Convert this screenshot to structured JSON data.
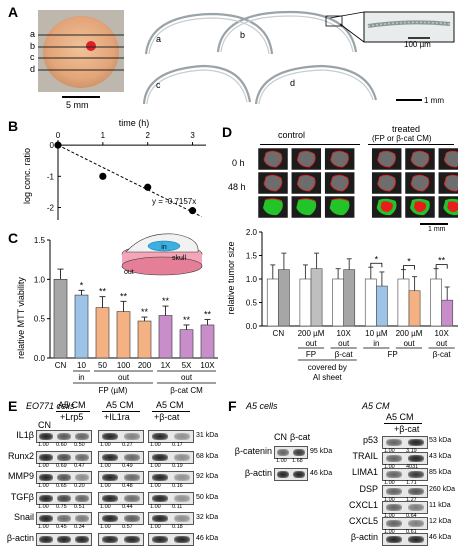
{
  "panels": {
    "A": "A",
    "B": "B",
    "C": "C",
    "D": "D",
    "E": "E",
    "F": "F"
  },
  "panelA": {
    "line_labels": [
      "a",
      "b",
      "c",
      "d"
    ],
    "scale_bar_photo": "5 mm",
    "section_labels": [
      "a",
      "b",
      "c",
      "d"
    ],
    "scale_bar_inset": "100 µm",
    "scale_bar_sections": "1 mm"
  },
  "panelB": {
    "x_axis_title": "time (h)",
    "y_axis_title": "log conc. ratio",
    "equation": "y = -0.7157x"
  },
  "chart_data": [
    {
      "type": "scatter",
      "panel": "B",
      "xlabel": "time (h)",
      "ylabel": "log conc. ratio",
      "x_ticks": [
        "0",
        "1",
        "2",
        "3"
      ],
      "y_ticks": [
        "0",
        "-1",
        "-2"
      ],
      "xlim": [
        0,
        3.3
      ],
      "ylim": [
        -2.4,
        0.1
      ],
      "points": [
        {
          "x": 0,
          "y": 0
        },
        {
          "x": 1,
          "y": -1.0
        },
        {
          "x": 2,
          "y": -1.35
        },
        {
          "x": 3,
          "y": -2.1
        }
      ],
      "fit_slope": -0.7157,
      "annotation": "y = -0.7157x"
    },
    {
      "type": "bar",
      "panel": "C",
      "ylabel": "relative MTT viability",
      "y_ticks": [
        "0.0",
        "0.5",
        "1.0",
        "1.5"
      ],
      "ylim": [
        0,
        1.5
      ],
      "categories": [
        "CN",
        "10",
        "50",
        "100",
        "200",
        "1X",
        "5X",
        "10X"
      ],
      "values": [
        1.0,
        0.8,
        0.64,
        0.59,
        0.47,
        0.54,
        0.36,
        0.42
      ],
      "errors": [
        0.13,
        0.06,
        0.14,
        0.13,
        0.05,
        0.12,
        0.06,
        0.07
      ],
      "significance": [
        "",
        "*",
        "**",
        "**",
        "**",
        "**",
        "**",
        "**"
      ],
      "colors": [
        "#a6a6a6",
        "#9dc3e6",
        "#f4b183",
        "#f4b183",
        "#f4b183",
        "#c88ec9",
        "#c88ec9",
        "#c88ec9"
      ],
      "group_row1": [
        "in",
        "out",
        "out"
      ],
      "group_row2": [
        "FP (µM)",
        "β-cat CM"
      ]
    },
    {
      "type": "bar",
      "panel": "D",
      "ylabel": "relative tumor size",
      "y_ticks": [
        "0.0",
        "0.5",
        "1.0",
        "1.5",
        "2.0"
      ],
      "ylim": [
        0,
        2.0
      ],
      "categories": [
        "CN",
        "200 µM",
        "10X",
        "10 µM",
        "200 µM",
        "10X"
      ],
      "series": [
        {
          "name": "0 h",
          "values": [
            1.0,
            1.0,
            1.0,
            1.0,
            1.0,
            1.0
          ],
          "errors": [
            0.3,
            0.3,
            0.22,
            0.25,
            0.2,
            0.22
          ]
        },
        {
          "name": "48 h",
          "values": [
            1.2,
            1.22,
            1.2,
            0.85,
            0.75,
            0.55
          ],
          "errors": [
            0.35,
            0.33,
            0.23,
            0.3,
            0.3,
            0.28
          ]
        }
      ],
      "colors_0h": "#ffffff",
      "colors_48h": [
        "#a6a6a6",
        "#bfbfbf",
        "#a6a6a6",
        "#9dc3e6",
        "#f4b183",
        "#c88ec9"
      ],
      "significance": [
        "",
        "",
        "",
        "*",
        "*",
        "**"
      ],
      "row_out_in": [
        "out",
        "out",
        "in",
        "out",
        "out"
      ],
      "row_agent": [
        "FP",
        "β-cat",
        "FP",
        "β-cat"
      ],
      "covered_label": "covered by Al sheet"
    }
  ],
  "panelC": {
    "inset_labels": {
      "in": "in",
      "skull": "skull",
      "out": "out"
    }
  },
  "panelD": {
    "control_title": "control",
    "treated_title": "treated",
    "treated_subtitle": "(FP or β-cat CM)",
    "row_labels": [
      "0 h",
      "48 h",
      ""
    ],
    "scale_bar": "1 mm"
  },
  "panelE": {
    "cell_title": "EO771 cells",
    "group_headers": [
      {
        "top": "A5 CM",
        "sub": "+Lrp5"
      },
      {
        "top": "A5 CM",
        "sub": "+IL1ra"
      },
      {
        "top": "A5 CM",
        "sub": "+β-cat"
      }
    ],
    "cn_label": "CN",
    "rows": [
      {
        "name": "IL1β",
        "kda": "31 kDa",
        "q1": [
          "1.00",
          "0.60",
          "0.50"
        ],
        "q2": [
          "1.00",
          "0.27"
        ],
        "q3": [
          "1.00",
          "0.17"
        ]
      },
      {
        "name": "Runx2",
        "kda": "68 kDa",
        "q1": [
          "1.00",
          "0.69",
          "0.47"
        ],
        "q2": [
          "1.00",
          "0.49"
        ],
        "q3": [
          "1.00",
          "0.19"
        ]
      },
      {
        "name": "MMP9",
        "kda": "92 kDa",
        "q1": [
          "1.00",
          "0.65",
          "0.20"
        ],
        "q2": [
          "1.00",
          "0.48"
        ],
        "q3": [
          "1.00",
          "0.16"
        ]
      },
      {
        "name": "TGFβ",
        "kda": "50 kDa",
        "q1": [
          "1.00",
          "0.75",
          "0.51"
        ],
        "q2": [
          "1.00",
          "0.44"
        ],
        "q3": [
          "1.00",
          "0.11"
        ]
      },
      {
        "name": "Snail",
        "kda": "32 kDa",
        "q1": [
          "1.00",
          "0.45",
          "0.34"
        ],
        "q2": [
          "1.00",
          "0.57"
        ],
        "q3": [
          "1.00",
          "0.18"
        ]
      },
      {
        "name": "β-actin",
        "kda": "46 kDa",
        "q1": [],
        "q2": [],
        "q3": []
      }
    ]
  },
  "panelF": {
    "left_title": "A5 cells",
    "left_headers": [
      "CN",
      "β-cat"
    ],
    "left_rows": [
      {
        "name": "β-catenin",
        "kda": "95 kDa",
        "q": [
          "1.00",
          "1.68"
        ]
      },
      {
        "name": "β-actin",
        "kda": "46 kDa",
        "q": []
      }
    ],
    "right_title": "A5 CM",
    "right_header_top": "A5 CM",
    "right_header_sub": "+β-cat",
    "right_rows": [
      {
        "name": "p53",
        "kda": "53 kDa",
        "q": [
          "1.00",
          "3.19"
        ]
      },
      {
        "name": "TRAIL",
        "kda": "43 kDa",
        "q": [
          "1.00",
          "4031"
        ]
      },
      {
        "name": "LIMA1",
        "kda": "85 kDa",
        "q": [
          "1.00",
          "1.71"
        ]
      },
      {
        "name": "DSP",
        "kda": "260 kDa",
        "q": [
          "1.00",
          "1.27"
        ]
      },
      {
        "name": "CXCL1",
        "kda": "11 kDa",
        "q": [
          "1.00",
          "0.64"
        ]
      },
      {
        "name": "CXCL5",
        "kda": "12 kDa",
        "q": [
          "1.00",
          "0.61"
        ]
      },
      {
        "name": "β-actin",
        "kda": "46 kDa",
        "q": []
      }
    ]
  }
}
